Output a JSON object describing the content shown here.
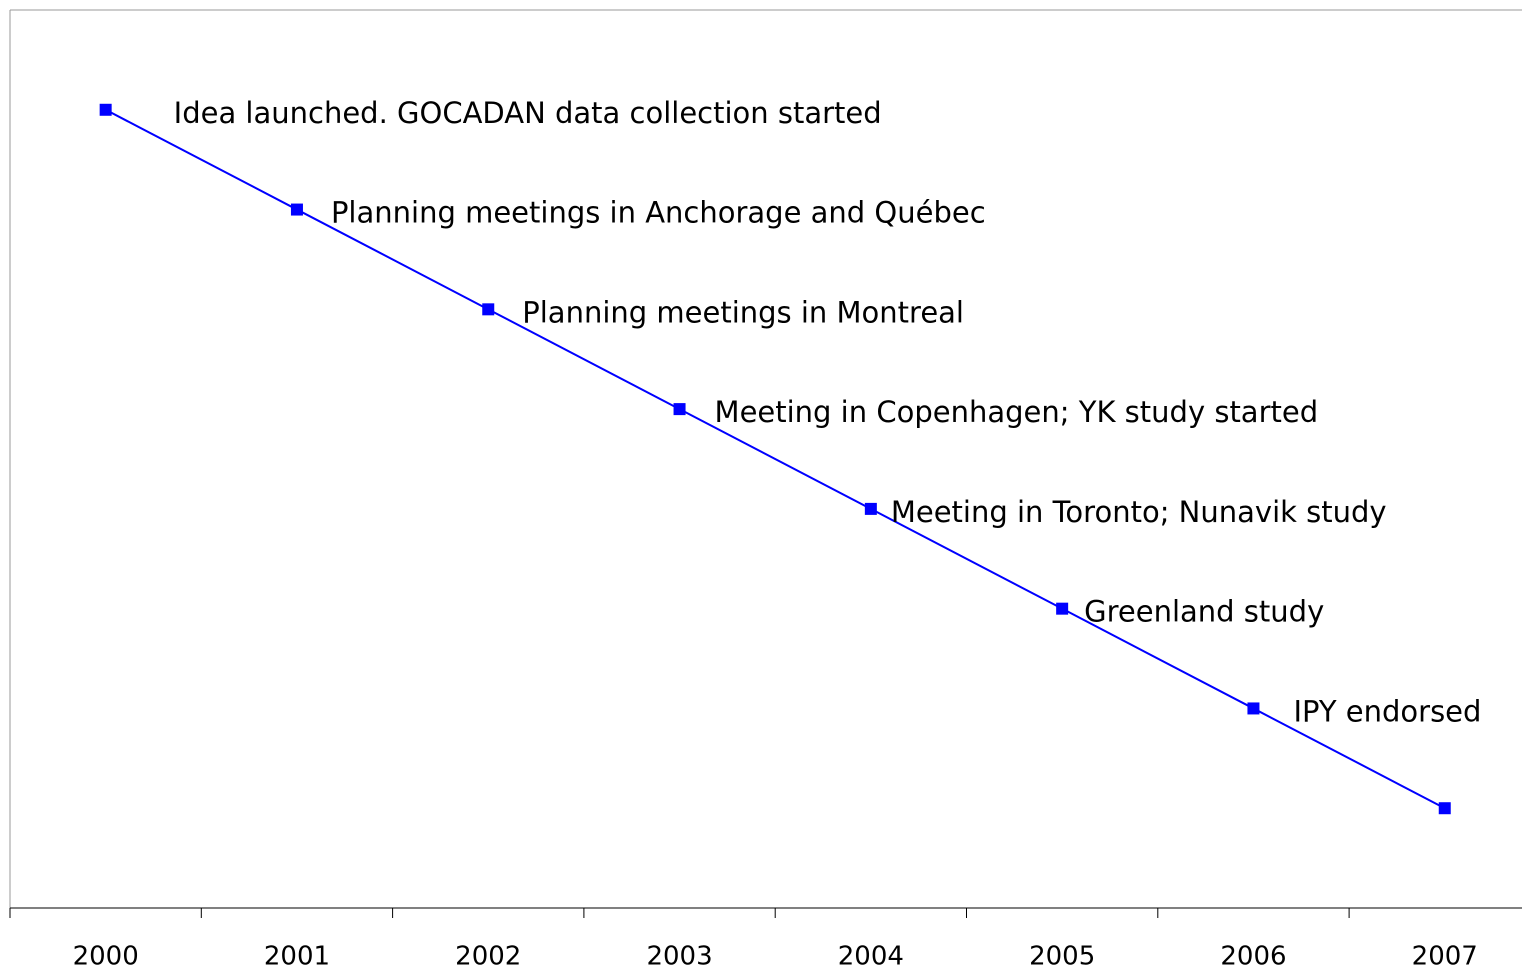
{
  "chart_data": {
    "type": "line",
    "categories": [
      "2000",
      "2001",
      "2002",
      "2003",
      "2004",
      "2005",
      "2006",
      "2007"
    ],
    "values": [
      8,
      7,
      6,
      5,
      4,
      3,
      2,
      1
    ],
    "annotations": [
      "Idea launched. GOCADAN data collection started",
      "Planning meetings in Anchorage and Québec",
      "Planning meetings in Montreal",
      "Meeting in Copenhagen; YK study started",
      "Meeting in Toronto; Nunavik study",
      "Greenland study",
      "IPY endorsed",
      null
    ],
    "color": "#0000ff",
    "ylim": [
      0,
      9
    ]
  }
}
